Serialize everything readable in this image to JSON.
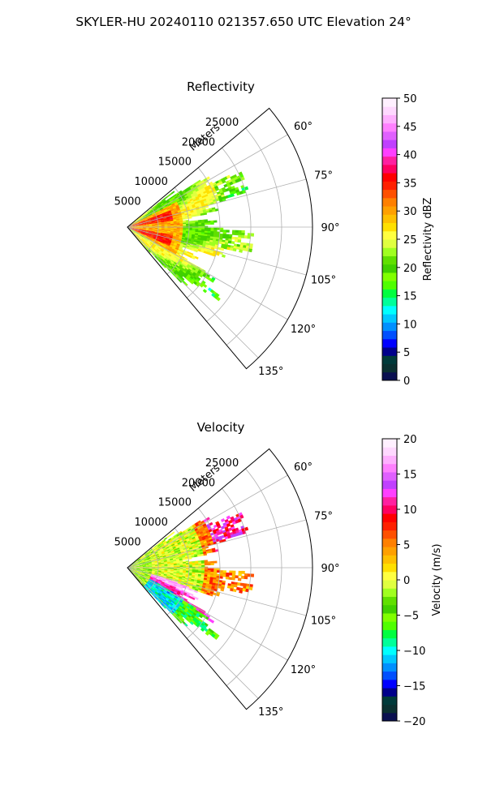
{
  "suptitle": "SKYLER-HU  20240110  021357.650 UTC Elevation 24°",
  "chart_data": [
    {
      "type": "heatmap",
      "projection": "polar-sector",
      "title": "Reflectivity",
      "range_axis_label": "Meters",
      "range_ticks": [
        5000,
        10000,
        15000,
        20000,
        25000
      ],
      "range_tick_labels": [
        "5000",
        "10000",
        "15000",
        "20000",
        "25000"
      ],
      "rlim": [
        0,
        30000
      ],
      "azimuth_ticks_deg": [
        60,
        75,
        90,
        105,
        120,
        135
      ],
      "azimuth_tick_labels": [
        "60°",
        "75°",
        "90°",
        "105°",
        "120°",
        "135°"
      ],
      "azimuth_range_deg": [
        50,
        140
      ],
      "grid": true,
      "data_extent_m": 19000,
      "colorbar": {
        "label": "Reflectivity dBZ",
        "vmin": 0,
        "vmax": 50,
        "ticks": [
          0,
          5,
          10,
          15,
          20,
          25,
          30,
          35,
          40,
          45,
          50
        ],
        "tick_labels": [
          "0",
          "5",
          "10",
          "15",
          "20",
          "25",
          "30",
          "35",
          "40",
          "45",
          "50"
        ],
        "colors": [
          "#0a1050",
          "#0a3030",
          "#003a3a",
          "#00008b",
          "#0000ff",
          "#0050ff",
          "#0090ff",
          "#00c8ff",
          "#00ffff",
          "#00ff9a",
          "#00ff40",
          "#50ff00",
          "#80ff00",
          "#40d000",
          "#60e000",
          "#a0ff20",
          "#e0ff40",
          "#ffff40",
          "#ffe000",
          "#ffc000",
          "#ffa000",
          "#ff8000",
          "#ff5000",
          "#ff2000",
          "#ff0000",
          "#ff0060",
          "#ff20a0",
          "#ff40ff",
          "#c040ff",
          "#e060ff",
          "#ff80ff",
          "#ffb0ff",
          "#ffd8ff",
          "#fff0ff"
        ]
      },
      "dominant_values_dbz": [
        20,
        22,
        25,
        30,
        35
      ]
    },
    {
      "type": "heatmap",
      "projection": "polar-sector",
      "title": "Velocity",
      "range_axis_label": "Meters",
      "range_ticks": [
        5000,
        10000,
        15000,
        20000,
        25000
      ],
      "range_tick_labels": [
        "5000",
        "10000",
        "15000",
        "20000",
        "25000"
      ],
      "rlim": [
        0,
        30000
      ],
      "azimuth_ticks_deg": [
        60,
        75,
        90,
        105,
        120,
        135
      ],
      "azimuth_tick_labels": [
        "60°",
        "75°",
        "90°",
        "105°",
        "120°",
        "135°"
      ],
      "azimuth_range_deg": [
        50,
        140
      ],
      "grid": true,
      "data_extent_m": 19000,
      "colorbar": {
        "label": "Velocity (m/s)",
        "vmin": -20,
        "vmax": 20,
        "ticks": [
          -20,
          -15,
          -10,
          -5,
          0,
          5,
          10,
          15,
          20
        ],
        "tick_labels": [
          "−20",
          "−15",
          "−10",
          "−5",
          "0",
          "5",
          "10",
          "15",
          "20"
        ],
        "colors": [
          "#0a1050",
          "#0a3030",
          "#003a3a",
          "#00008b",
          "#0000ff",
          "#0050ff",
          "#0090ff",
          "#00c8ff",
          "#00ffff",
          "#00ff9a",
          "#00ff40",
          "#50ff00",
          "#80ff00",
          "#40d000",
          "#60e000",
          "#a0ff20",
          "#e0ff40",
          "#ffff40",
          "#ffe000",
          "#ffc000",
          "#ffa000",
          "#ff8000",
          "#ff5000",
          "#ff2000",
          "#ff0000",
          "#ff0060",
          "#ff20a0",
          "#ff40ff",
          "#c040ff",
          "#e060ff",
          "#ff80ff",
          "#ffb0ff",
          "#ffd8ff",
          "#fff0ff"
        ]
      },
      "dominant_values_ms": [
        -10,
        -5,
        0,
        5,
        10,
        15
      ]
    }
  ]
}
